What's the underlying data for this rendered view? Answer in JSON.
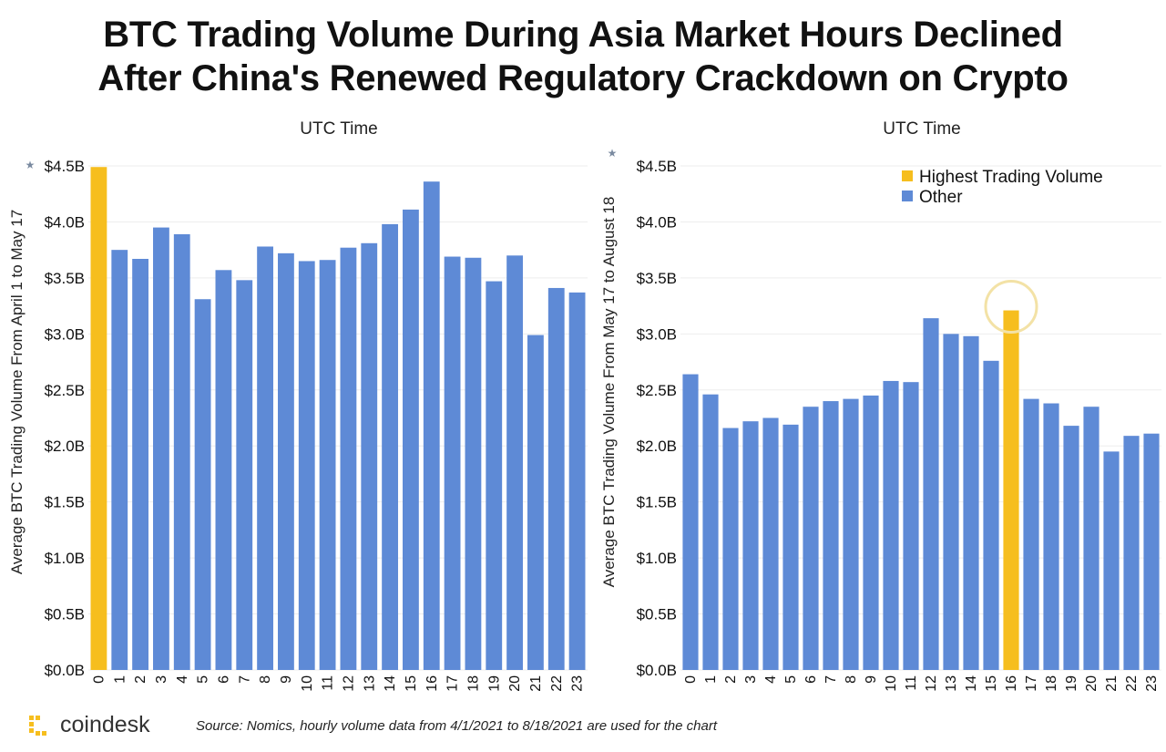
{
  "title": {
    "line1": "BTC Trading Volume During Asia Market Hours Declined",
    "line2": "After China's Renewed Regulatory Crackdown on Crypto"
  },
  "colors": {
    "highlight": "#F6BE1E",
    "other": "#5E8AD6",
    "circle": "#F3E2A6",
    "grid": "#eeeeee"
  },
  "footer": {
    "logo_text": "coindesk",
    "source": "Source: Nomics, hourly volume data from 4/1/2021 to 8/18/2021 are used for the chart"
  },
  "chart_data": [
    {
      "type": "bar",
      "top_label": "UTC Time",
      "ylabel": "Average BTC Trading Volume From April 1 to May 17",
      "ylim": [
        0,
        4.5
      ],
      "yticks": [
        0,
        0.5,
        1.0,
        1.5,
        2.0,
        2.5,
        3.0,
        3.5,
        4.0,
        4.5
      ],
      "ytick_labels": [
        "$0.0B",
        "$0.5B",
        "$1.0B",
        "$1.5B",
        "$2.0B",
        "$2.5B",
        "$3.0B",
        "$3.5B",
        "$4.0B",
        "$4.5B"
      ],
      "categories": [
        "0",
        "1",
        "2",
        "3",
        "4",
        "5",
        "6",
        "7",
        "8",
        "9",
        "10",
        "11",
        "12",
        "13",
        "14",
        "15",
        "16",
        "17",
        "18",
        "19",
        "20",
        "21",
        "22",
        "23"
      ],
      "values": [
        4.49,
        3.75,
        3.67,
        3.95,
        3.89,
        3.31,
        3.57,
        3.48,
        3.78,
        3.72,
        3.65,
        3.66,
        3.77,
        3.81,
        3.98,
        4.11,
        4.36,
        3.69,
        3.68,
        3.47,
        3.7,
        2.99,
        3.41,
        3.37
      ],
      "highlight_index": 0
    },
    {
      "type": "bar",
      "top_label": "UTC Time",
      "ylabel": "Average BTC Trading Volume From May 17 to August 18",
      "ylim": [
        0,
        4.5
      ],
      "yticks": [
        0,
        0.5,
        1.0,
        1.5,
        2.0,
        2.5,
        3.0,
        3.5,
        4.0,
        4.5
      ],
      "ytick_labels": [
        "$0.0B",
        "$0.5B",
        "$1.0B",
        "$1.5B",
        "$2.0B",
        "$2.5B",
        "$3.0B",
        "$3.5B",
        "$4.0B",
        "$4.5B"
      ],
      "categories": [
        "0",
        "1",
        "2",
        "3",
        "4",
        "5",
        "6",
        "7",
        "8",
        "9",
        "10",
        "11",
        "12",
        "13",
        "14",
        "15",
        "16",
        "17",
        "18",
        "19",
        "20",
        "21",
        "22",
        "23"
      ],
      "values": [
        2.64,
        2.46,
        2.16,
        2.22,
        2.25,
        2.19,
        2.35,
        2.4,
        2.42,
        2.45,
        2.58,
        2.57,
        3.14,
        3.0,
        2.98,
        2.76,
        3.21,
        2.42,
        2.38,
        2.18,
        2.35,
        1.95,
        2.09,
        2.11
      ],
      "highlight_index": 16,
      "legend": [
        {
          "label": "Highest Trading Volume",
          "color": "#F6BE1E"
        },
        {
          "label": "Other",
          "color": "#5E8AD6"
        }
      ],
      "legend_position": "top-right"
    }
  ]
}
